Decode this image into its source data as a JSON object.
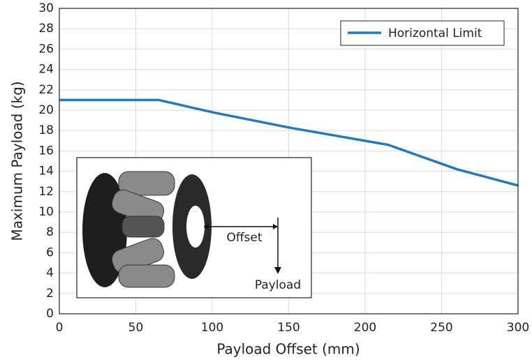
{
  "chart_data": {
    "type": "line",
    "xlabel": "Payload Offset (mm)",
    "ylabel": "Maximum Payload (kg)",
    "x": [
      0,
      65,
      100,
      150,
      215,
      260,
      300
    ],
    "series": [
      {
        "name": "Horizontal Limit",
        "color": "#2878b8",
        "values": [
          21,
          21,
          19.8,
          18.3,
          16.6,
          14.2,
          12.6
        ]
      }
    ],
    "xlim": [
      0,
      300
    ],
    "xticks": [
      0,
      50,
      100,
      150,
      200,
      250,
      300
    ],
    "ylim": [
      0,
      30
    ],
    "yticks": [
      0,
      2,
      4,
      6,
      8,
      10,
      12,
      14,
      16,
      18,
      20,
      22,
      24,
      26,
      28,
      30
    ],
    "grid": true,
    "legend": "upper right",
    "annotations": [
      {
        "text": "Offset"
      },
      {
        "text": "Payload"
      }
    ]
  }
}
